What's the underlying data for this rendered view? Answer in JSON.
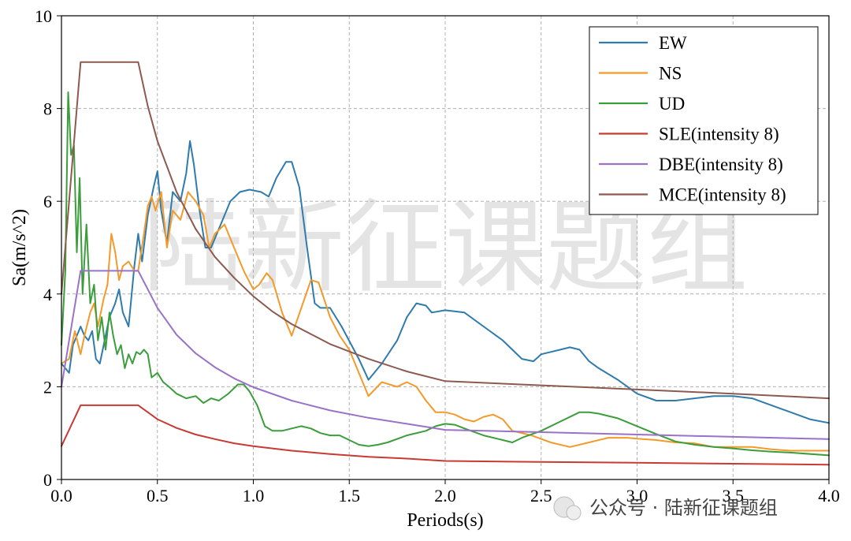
{
  "watermark": {
    "center_text": "陆新征课题组",
    "footer_text": "公众号 · 陆新征课题组"
  },
  "chart_data": {
    "type": "line",
    "title": "",
    "xlabel": "Periods(s)",
    "ylabel": "Sa(m/s^2)",
    "xlim": [
      0,
      4.0
    ],
    "ylim": [
      0,
      10
    ],
    "xticks": [
      0.0,
      0.5,
      1.0,
      1.5,
      2.0,
      2.5,
      3.0,
      3.5,
      4.0
    ],
    "xtick_labels": [
      "0.0",
      "0.5",
      "1.0",
      "1.5",
      "2.0",
      "2.5",
      "3.0",
      "3.5",
      "4.0"
    ],
    "yticks": [
      0,
      2,
      4,
      6,
      8,
      10
    ],
    "ytick_labels": [
      "0",
      "2",
      "4",
      "6",
      "8",
      "10"
    ],
    "grid": true,
    "legend_position": "top-right",
    "series": [
      {
        "name": "EW",
        "color": "#2f7bad",
        "points": [
          [
            0,
            2.5
          ],
          [
            0.04,
            2.3
          ],
          [
            0.06,
            2.9
          ],
          [
            0.08,
            3.1
          ],
          [
            0.1,
            3.3
          ],
          [
            0.12,
            3.1
          ],
          [
            0.14,
            3.0
          ],
          [
            0.16,
            3.2
          ],
          [
            0.18,
            2.6
          ],
          [
            0.2,
            2.5
          ],
          [
            0.22,
            2.9
          ],
          [
            0.25,
            3.5
          ],
          [
            0.28,
            3.8
          ],
          [
            0.3,
            4.1
          ],
          [
            0.32,
            3.6
          ],
          [
            0.35,
            3.3
          ],
          [
            0.38,
            4.6
          ],
          [
            0.4,
            5.3
          ],
          [
            0.42,
            4.7
          ],
          [
            0.45,
            5.7
          ],
          [
            0.48,
            6.3
          ],
          [
            0.5,
            6.65
          ],
          [
            0.52,
            5.8
          ],
          [
            0.55,
            5.1
          ],
          [
            0.58,
            6.2
          ],
          [
            0.62,
            6.0
          ],
          [
            0.65,
            6.6
          ],
          [
            0.67,
            7.3
          ],
          [
            0.69,
            6.8
          ],
          [
            0.72,
            5.8
          ],
          [
            0.75,
            5.0
          ],
          [
            0.78,
            5.0
          ],
          [
            0.82,
            5.4
          ],
          [
            0.88,
            6.0
          ],
          [
            0.93,
            6.2
          ],
          [
            0.98,
            6.25
          ],
          [
            1.04,
            6.2
          ],
          [
            1.08,
            6.1
          ],
          [
            1.12,
            6.5
          ],
          [
            1.17,
            6.85
          ],
          [
            1.2,
            6.85
          ],
          [
            1.24,
            6.3
          ],
          [
            1.28,
            5.0
          ],
          [
            1.32,
            3.8
          ],
          [
            1.35,
            3.7
          ],
          [
            1.4,
            3.7
          ],
          [
            1.46,
            3.3
          ],
          [
            1.55,
            2.6
          ],
          [
            1.6,
            2.15
          ],
          [
            1.67,
            2.5
          ],
          [
            1.75,
            3.0
          ],
          [
            1.8,
            3.5
          ],
          [
            1.85,
            3.8
          ],
          [
            1.9,
            3.75
          ],
          [
            1.93,
            3.6
          ],
          [
            2.0,
            3.65
          ],
          [
            2.1,
            3.6
          ],
          [
            2.2,
            3.3
          ],
          [
            2.3,
            3.0
          ],
          [
            2.4,
            2.6
          ],
          [
            2.46,
            2.55
          ],
          [
            2.5,
            2.7
          ],
          [
            2.55,
            2.75
          ],
          [
            2.6,
            2.8
          ],
          [
            2.65,
            2.85
          ],
          [
            2.7,
            2.8
          ],
          [
            2.75,
            2.55
          ],
          [
            2.8,
            2.4
          ],
          [
            2.9,
            2.15
          ],
          [
            3.0,
            1.85
          ],
          [
            3.1,
            1.7
          ],
          [
            3.2,
            1.7
          ],
          [
            3.3,
            1.75
          ],
          [
            3.4,
            1.8
          ],
          [
            3.5,
            1.8
          ],
          [
            3.6,
            1.75
          ],
          [
            3.7,
            1.6
          ],
          [
            3.8,
            1.45
          ],
          [
            3.9,
            1.3
          ],
          [
            4.0,
            1.22
          ]
        ]
      },
      {
        "name": "NS",
        "color": "#f39a2b",
        "points": [
          [
            0,
            2.5
          ],
          [
            0.04,
            2.6
          ],
          [
            0.07,
            3.2
          ],
          [
            0.1,
            2.7
          ],
          [
            0.12,
            3.1
          ],
          [
            0.15,
            3.6
          ],
          [
            0.17,
            3.8
          ],
          [
            0.19,
            3.3
          ],
          [
            0.22,
            3.9
          ],
          [
            0.24,
            4.2
          ],
          [
            0.26,
            5.3
          ],
          [
            0.28,
            4.9
          ],
          [
            0.3,
            4.3
          ],
          [
            0.32,
            4.6
          ],
          [
            0.35,
            4.7
          ],
          [
            0.38,
            4.5
          ],
          [
            0.4,
            4.5
          ],
          [
            0.43,
            5.3
          ],
          [
            0.45,
            5.9
          ],
          [
            0.47,
            6.1
          ],
          [
            0.49,
            5.8
          ],
          [
            0.52,
            6.2
          ],
          [
            0.55,
            5.0
          ],
          [
            0.58,
            5.8
          ],
          [
            0.62,
            5.6
          ],
          [
            0.66,
            6.2
          ],
          [
            0.7,
            6.0
          ],
          [
            0.74,
            5.7
          ],
          [
            0.77,
            5.0
          ],
          [
            0.8,
            5.3
          ],
          [
            0.85,
            5.5
          ],
          [
            0.9,
            5.0
          ],
          [
            0.95,
            4.5
          ],
          [
            1.0,
            4.1
          ],
          [
            1.03,
            4.2
          ],
          [
            1.07,
            4.45
          ],
          [
            1.1,
            4.3
          ],
          [
            1.15,
            3.6
          ],
          [
            1.2,
            3.1
          ],
          [
            1.25,
            3.7
          ],
          [
            1.3,
            4.3
          ],
          [
            1.34,
            4.25
          ],
          [
            1.4,
            3.5
          ],
          [
            1.45,
            3.1
          ],
          [
            1.5,
            2.8
          ],
          [
            1.55,
            2.3
          ],
          [
            1.6,
            1.8
          ],
          [
            1.67,
            2.1
          ],
          [
            1.75,
            2.0
          ],
          [
            1.8,
            2.1
          ],
          [
            1.85,
            2.0
          ],
          [
            1.9,
            1.7
          ],
          [
            1.95,
            1.45
          ],
          [
            2.0,
            1.45
          ],
          [
            2.05,
            1.4
          ],
          [
            2.1,
            1.3
          ],
          [
            2.15,
            1.25
          ],
          [
            2.2,
            1.35
          ],
          [
            2.25,
            1.4
          ],
          [
            2.3,
            1.3
          ],
          [
            2.35,
            1.05
          ],
          [
            2.45,
            0.95
          ],
          [
            2.55,
            0.8
          ],
          [
            2.65,
            0.7
          ],
          [
            2.75,
            0.8
          ],
          [
            2.85,
            0.9
          ],
          [
            2.95,
            0.9
          ],
          [
            3.0,
            0.88
          ],
          [
            3.1,
            0.85
          ],
          [
            3.2,
            0.8
          ],
          [
            3.3,
            0.78
          ],
          [
            3.4,
            0.7
          ],
          [
            3.5,
            0.7
          ],
          [
            3.6,
            0.7
          ],
          [
            3.7,
            0.65
          ],
          [
            3.8,
            0.62
          ],
          [
            4.0,
            0.62
          ]
        ]
      },
      {
        "name": "UD",
        "color": "#3c9d3c",
        "points": [
          [
            0,
            2.9
          ],
          [
            0.02,
            4.5
          ],
          [
            0.035,
            8.35
          ],
          [
            0.05,
            7.0
          ],
          [
            0.065,
            7.2
          ],
          [
            0.08,
            4.9
          ],
          [
            0.095,
            6.5
          ],
          [
            0.11,
            4.0
          ],
          [
            0.13,
            5.5
          ],
          [
            0.15,
            3.8
          ],
          [
            0.17,
            4.2
          ],
          [
            0.19,
            3.0
          ],
          [
            0.21,
            3.5
          ],
          [
            0.23,
            2.8
          ],
          [
            0.25,
            3.6
          ],
          [
            0.27,
            3.1
          ],
          [
            0.29,
            2.7
          ],
          [
            0.31,
            2.9
          ],
          [
            0.33,
            2.4
          ],
          [
            0.35,
            2.7
          ],
          [
            0.37,
            2.5
          ],
          [
            0.39,
            2.75
          ],
          [
            0.41,
            2.7
          ],
          [
            0.43,
            2.8
          ],
          [
            0.45,
            2.7
          ],
          [
            0.47,
            2.2
          ],
          [
            0.5,
            2.3
          ],
          [
            0.53,
            2.1
          ],
          [
            0.56,
            2.0
          ],
          [
            0.6,
            1.85
          ],
          [
            0.65,
            1.75
          ],
          [
            0.7,
            1.8
          ],
          [
            0.74,
            1.65
          ],
          [
            0.78,
            1.75
          ],
          [
            0.82,
            1.7
          ],
          [
            0.87,
            1.85
          ],
          [
            0.92,
            2.05
          ],
          [
            0.95,
            2.05
          ],
          [
            0.98,
            1.9
          ],
          [
            1.02,
            1.6
          ],
          [
            1.06,
            1.15
          ],
          [
            1.1,
            1.05
          ],
          [
            1.15,
            1.05
          ],
          [
            1.2,
            1.1
          ],
          [
            1.25,
            1.15
          ],
          [
            1.3,
            1.1
          ],
          [
            1.35,
            1.0
          ],
          [
            1.4,
            0.95
          ],
          [
            1.45,
            0.95
          ],
          [
            1.5,
            0.85
          ],
          [
            1.55,
            0.75
          ],
          [
            1.6,
            0.72
          ],
          [
            1.65,
            0.75
          ],
          [
            1.7,
            0.8
          ],
          [
            1.8,
            0.95
          ],
          [
            1.9,
            1.05
          ],
          [
            1.95,
            1.15
          ],
          [
            2.0,
            1.2
          ],
          [
            2.05,
            1.18
          ],
          [
            2.1,
            1.1
          ],
          [
            2.2,
            0.95
          ],
          [
            2.3,
            0.85
          ],
          [
            2.35,
            0.8
          ],
          [
            2.4,
            0.9
          ],
          [
            2.5,
            1.05
          ],
          [
            2.6,
            1.25
          ],
          [
            2.7,
            1.45
          ],
          [
            2.75,
            1.45
          ],
          [
            2.8,
            1.42
          ],
          [
            2.9,
            1.32
          ],
          [
            3.0,
            1.15
          ],
          [
            3.1,
            0.98
          ],
          [
            3.2,
            0.82
          ],
          [
            3.3,
            0.75
          ],
          [
            3.4,
            0.7
          ],
          [
            3.5,
            0.67
          ],
          [
            3.6,
            0.63
          ],
          [
            3.7,
            0.6
          ],
          [
            3.8,
            0.58
          ],
          [
            4.0,
            0.52
          ]
        ]
      },
      {
        "name": "SLE(intensity 8)",
        "color": "#c83a34",
        "points": [
          [
            0,
            0.72
          ],
          [
            0.1,
            1.6
          ],
          [
            0.4,
            1.6
          ],
          [
            0.5,
            1.3
          ],
          [
            0.6,
            1.11
          ],
          [
            0.7,
            0.97
          ],
          [
            0.8,
            0.87
          ],
          [
            0.9,
            0.78
          ],
          [
            1.0,
            0.72
          ],
          [
            1.2,
            0.62
          ],
          [
            1.4,
            0.55
          ],
          [
            1.6,
            0.49
          ],
          [
            1.8,
            0.45
          ],
          [
            2.0,
            0.4
          ],
          [
            2.5,
            0.38
          ],
          [
            3.0,
            0.36
          ],
          [
            3.5,
            0.34
          ],
          [
            4.0,
            0.32
          ]
        ]
      },
      {
        "name": "DBE(intensity 8)",
        "color": "#9a72c8",
        "points": [
          [
            0,
            2.0
          ],
          [
            0.1,
            4.5
          ],
          [
            0.4,
            4.5
          ],
          [
            0.5,
            3.7
          ],
          [
            0.6,
            3.12
          ],
          [
            0.7,
            2.72
          ],
          [
            0.8,
            2.42
          ],
          [
            0.9,
            2.18
          ],
          [
            1.0,
            1.99
          ],
          [
            1.2,
            1.7
          ],
          [
            1.4,
            1.49
          ],
          [
            1.6,
            1.33
          ],
          [
            1.8,
            1.2
          ],
          [
            2.0,
            1.07
          ],
          [
            2.5,
            1.02
          ],
          [
            3.0,
            0.97
          ],
          [
            3.5,
            0.92
          ],
          [
            4.0,
            0.87
          ]
        ]
      },
      {
        "name": "MCE(intensity 8)",
        "color": "#8c5a4f",
        "points": [
          [
            0,
            4.0
          ],
          [
            0.1,
            9.0
          ],
          [
            0.4,
            9.0
          ],
          [
            0.45,
            8.05
          ],
          [
            0.5,
            7.3
          ],
          [
            0.6,
            6.2
          ],
          [
            0.7,
            5.4
          ],
          [
            0.8,
            4.8
          ],
          [
            0.9,
            4.35
          ],
          [
            1.0,
            3.95
          ],
          [
            1.1,
            3.62
          ],
          [
            1.2,
            3.35
          ],
          [
            1.4,
            2.92
          ],
          [
            1.6,
            2.6
          ],
          [
            1.8,
            2.33
          ],
          [
            2.0,
            2.12
          ],
          [
            2.5,
            2.03
          ],
          [
            3.0,
            1.94
          ],
          [
            3.5,
            1.85
          ],
          [
            4.0,
            1.75
          ]
        ]
      }
    ]
  }
}
